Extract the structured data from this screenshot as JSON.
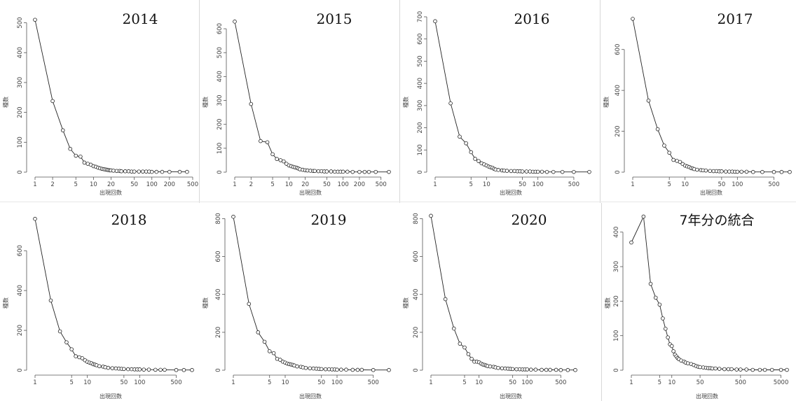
{
  "chart_data": [
    {
      "type": "scatter",
      "title": "2014",
      "xlabel": "出現回数",
      "ylabel": "種数",
      "xscale": "log",
      "xlim": [
        1,
        500
      ],
      "ylim": [
        0,
        520
      ],
      "xticks": [
        1,
        2,
        5,
        10,
        20,
        50,
        100,
        200,
        500
      ],
      "xtick_labels": [
        "1",
        "2",
        "5",
        "10",
        "20",
        "50",
        "100",
        "200",
        "500"
      ],
      "yticks": [
        0,
        100,
        200,
        300,
        400,
        500
      ],
      "ytick_labels": [
        "0",
        "100",
        "200",
        "300",
        "400",
        "500"
      ],
      "x": [
        1,
        2,
        3,
        4,
        5,
        6,
        7,
        8,
        9,
        10,
        11,
        12,
        13,
        14,
        15,
        16,
        17,
        18,
        19,
        20,
        22,
        25,
        28,
        30,
        35,
        40,
        45,
        50,
        60,
        70,
        80,
        90,
        100,
        120,
        150,
        200,
        300,
        400
      ],
      "y": [
        510,
        238,
        140,
        78,
        55,
        52,
        32,
        28,
        25,
        20,
        18,
        15,
        13,
        11,
        10,
        9,
        8,
        7,
        6,
        6,
        5,
        4,
        4,
        3,
        3,
        3,
        2,
        2,
        2,
        2,
        2,
        2,
        1,
        1,
        1,
        1,
        1,
        1
      ]
    },
    {
      "type": "scatter",
      "title": "2015",
      "xlabel": "出現回数",
      "ylabel": "種数",
      "xscale": "log",
      "xlim": [
        1,
        700
      ],
      "ylim": [
        0,
        650
      ],
      "xticks": [
        1,
        2,
        5,
        10,
        20,
        50,
        100,
        200,
        500
      ],
      "xtick_labels": [
        "1",
        "2",
        "5",
        "10",
        "20",
        "50",
        "100",
        "200",
        "500"
      ],
      "yticks": [
        0,
        100,
        200,
        300,
        400,
        500,
        600
      ],
      "ytick_labels": [
        "0",
        "100",
        "200",
        "300",
        "400",
        "500",
        "600"
      ],
      "x": [
        1,
        2,
        3,
        4,
        5,
        6,
        7,
        8,
        9,
        10,
        11,
        12,
        13,
        14,
        15,
        16,
        18,
        20,
        22,
        25,
        28,
        30,
        35,
        40,
        45,
        50,
        60,
        70,
        80,
        90,
        100,
        120,
        150,
        200,
        250,
        300,
        400,
        700
      ],
      "y": [
        630,
        285,
        130,
        125,
        75,
        55,
        50,
        45,
        35,
        28,
        25,
        22,
        20,
        18,
        15,
        12,
        10,
        8,
        7,
        6,
        5,
        5,
        4,
        4,
        3,
        3,
        3,
        2,
        2,
        2,
        2,
        2,
        1,
        1,
        1,
        1,
        1,
        1
      ]
    },
    {
      "type": "scatter",
      "title": "2016",
      "xlabel": "出現回数",
      "ylabel": "種数",
      "xscale": "log",
      "xlim": [
        1,
        1000
      ],
      "ylim": [
        0,
        700
      ],
      "xticks": [
        1,
        5,
        10,
        50,
        100,
        500
      ],
      "xtick_labels": [
        "1",
        "5",
        "10",
        "50",
        "100",
        "500"
      ],
      "yticks": [
        0,
        100,
        200,
        300,
        400,
        500,
        600,
        700
      ],
      "ytick_labels": [
        "0",
        "100",
        "200",
        "300",
        "400",
        "500",
        "600",
        "700"
      ],
      "x": [
        1,
        2,
        3,
        4,
        5,
        6,
        7,
        8,
        9,
        10,
        11,
        12,
        13,
        14,
        15,
        17,
        20,
        22,
        25,
        30,
        35,
        40,
        45,
        50,
        60,
        70,
        80,
        90,
        100,
        120,
        150,
        200,
        300,
        500,
        1000
      ],
      "y": [
        680,
        310,
        160,
        130,
        90,
        60,
        50,
        40,
        35,
        30,
        25,
        22,
        20,
        15,
        12,
        10,
        8,
        7,
        6,
        5,
        5,
        4,
        4,
        3,
        3,
        3,
        2,
        2,
        2,
        2,
        1,
        1,
        1,
        1,
        1
      ]
    },
    {
      "type": "scatter",
      "title": "2017",
      "xlabel": "出現回数",
      "ylabel": "種数",
      "xscale": "log",
      "xlim": [
        1,
        1000
      ],
      "ylim": [
        0,
        760
      ],
      "xticks": [
        1,
        5,
        10,
        50,
        100,
        500
      ],
      "xtick_labels": [
        "1",
        "5",
        "10",
        "50",
        "100",
        "500"
      ],
      "yticks": [
        0,
        200,
        400,
        600
      ],
      "ytick_labels": [
        "0",
        "200",
        "400",
        "600"
      ],
      "x": [
        1,
        2,
        3,
        4,
        5,
        6,
        7,
        8,
        9,
        10,
        11,
        12,
        13,
        14,
        15,
        17,
        20,
        22,
        25,
        30,
        35,
        40,
        45,
        50,
        60,
        70,
        80,
        90,
        100,
        120,
        150,
        200,
        300,
        500,
        700,
        1000
      ],
      "y": [
        750,
        350,
        210,
        130,
        95,
        60,
        55,
        50,
        40,
        32,
        28,
        25,
        20,
        18,
        15,
        12,
        10,
        9,
        8,
        6,
        5,
        5,
        4,
        4,
        3,
        3,
        3,
        2,
        2,
        2,
        2,
        1,
        1,
        1,
        1,
        1
      ]
    },
    {
      "type": "scatter",
      "title": "2018",
      "xlabel": "出現回数",
      "ylabel": "種数",
      "xscale": "log",
      "xlim": [
        1,
        1000
      ],
      "ylim": [
        0,
        780
      ],
      "xticks": [
        1,
        5,
        10,
        50,
        100,
        500
      ],
      "xtick_labels": [
        "1",
        "5",
        "10",
        "50",
        "100",
        "500"
      ],
      "yticks": [
        0,
        200,
        400,
        600
      ],
      "ytick_labels": [
        "0",
        "200",
        "400",
        "600"
      ],
      "x": [
        1,
        2,
        3,
        4,
        5,
        6,
        7,
        8,
        9,
        10,
        11,
        12,
        13,
        14,
        15,
        17,
        20,
        22,
        25,
        30,
        35,
        40,
        45,
        50,
        60,
        70,
        80,
        90,
        100,
        120,
        150,
        200,
        250,
        300,
        500,
        700,
        1000
      ],
      "y": [
        760,
        350,
        195,
        140,
        105,
        70,
        65,
        60,
        50,
        42,
        38,
        35,
        30,
        28,
        25,
        20,
        18,
        15,
        12,
        10,
        9,
        8,
        7,
        6,
        5,
        5,
        4,
        4,
        4,
        3,
        3,
        2,
        2,
        2,
        1,
        1,
        1
      ]
    },
    {
      "type": "scatter",
      "title": "2019",
      "xlabel": "出現回数",
      "ylabel": "種数",
      "xscale": "log",
      "xlim": [
        1,
        1000
      ],
      "ylim": [
        0,
        820
      ],
      "xticks": [
        1,
        5,
        10,
        50,
        100,
        500
      ],
      "xtick_labels": [
        "1",
        "5",
        "10",
        "50",
        "100",
        "500"
      ],
      "yticks": [
        0,
        200,
        400,
        600,
        800
      ],
      "ytick_labels": [
        "0",
        "200",
        "400",
        "600",
        "800"
      ],
      "x": [
        1,
        2,
        3,
        4,
        5,
        6,
        7,
        8,
        9,
        10,
        11,
        12,
        13,
        14,
        15,
        17,
        20,
        22,
        25,
        30,
        35,
        40,
        45,
        50,
        60,
        70,
        80,
        90,
        100,
        120,
        150,
        200,
        250,
        300,
        500,
        1000
      ],
      "y": [
        810,
        350,
        200,
        150,
        100,
        90,
        60,
        55,
        45,
        40,
        35,
        32,
        30,
        28,
        25,
        20,
        18,
        15,
        12,
        10,
        9,
        8,
        7,
        6,
        5,
        5,
        4,
        4,
        3,
        3,
        3,
        2,
        2,
        2,
        1,
        1
      ]
    },
    {
      "type": "scatter",
      "title": "2020",
      "xlabel": "出現回数",
      "ylabel": "種数",
      "xscale": "log",
      "xlim": [
        1,
        1000
      ],
      "ylim": [
        0,
        820
      ],
      "xticks": [
        1,
        5,
        10,
        50,
        100,
        500
      ],
      "xtick_labels": [
        "1",
        "5",
        "10",
        "50",
        "100",
        "500"
      ],
      "yticks": [
        0,
        200,
        400,
        600,
        800
      ],
      "ytick_labels": [
        "0",
        "200",
        "400",
        "600",
        "800"
      ],
      "x": [
        1,
        2,
        3,
        4,
        5,
        6,
        7,
        8,
        9,
        10,
        11,
        12,
        13,
        14,
        15,
        17,
        20,
        22,
        25,
        30,
        35,
        40,
        45,
        50,
        60,
        70,
        80,
        90,
        100,
        120,
        150,
        200,
        250,
        300,
        400,
        500,
        700,
        1000
      ],
      "y": [
        815,
        375,
        220,
        140,
        120,
        85,
        60,
        45,
        45,
        42,
        35,
        30,
        28,
        25,
        22,
        20,
        18,
        15,
        12,
        10,
        9,
        8,
        7,
        6,
        5,
        5,
        4,
        4,
        4,
        3,
        3,
        2,
        2,
        2,
        2,
        1,
        1,
        1
      ]
    },
    {
      "type": "scatter",
      "title": "7年分の統合",
      "xlabel": "出現回数",
      "ylabel": "種数",
      "xscale": "log",
      "xlim": [
        1,
        7000
      ],
      "ylim": [
        0,
        450
      ],
      "xticks": [
        1,
        5,
        10,
        50,
        500,
        5000
      ],
      "xtick_labels": [
        "1",
        "5",
        "10",
        "50",
        "500",
        "5000"
      ],
      "yticks": [
        0,
        100,
        200,
        300,
        400
      ],
      "ytick_labels": [
        "0",
        "100",
        "200",
        "300",
        "400"
      ],
      "x": [
        1,
        2,
        3,
        4,
        5,
        6,
        7,
        8,
        9,
        10,
        11,
        12,
        13,
        14,
        15,
        17,
        20,
        22,
        25,
        30,
        35,
        40,
        45,
        50,
        60,
        70,
        80,
        90,
        100,
        120,
        150,
        200,
        250,
        300,
        400,
        500,
        700,
        1000,
        1500,
        2000,
        3000,
        5000,
        7000
      ],
      "y": [
        370,
        445,
        250,
        210,
        190,
        150,
        120,
        95,
        75,
        70,
        55,
        45,
        40,
        35,
        32,
        28,
        25,
        22,
        20,
        18,
        15,
        12,
        10,
        9,
        8,
        7,
        6,
        6,
        5,
        5,
        4,
        3,
        3,
        3,
        2,
        2,
        2,
        1,
        1,
        1,
        1,
        1,
        1
      ]
    }
  ]
}
